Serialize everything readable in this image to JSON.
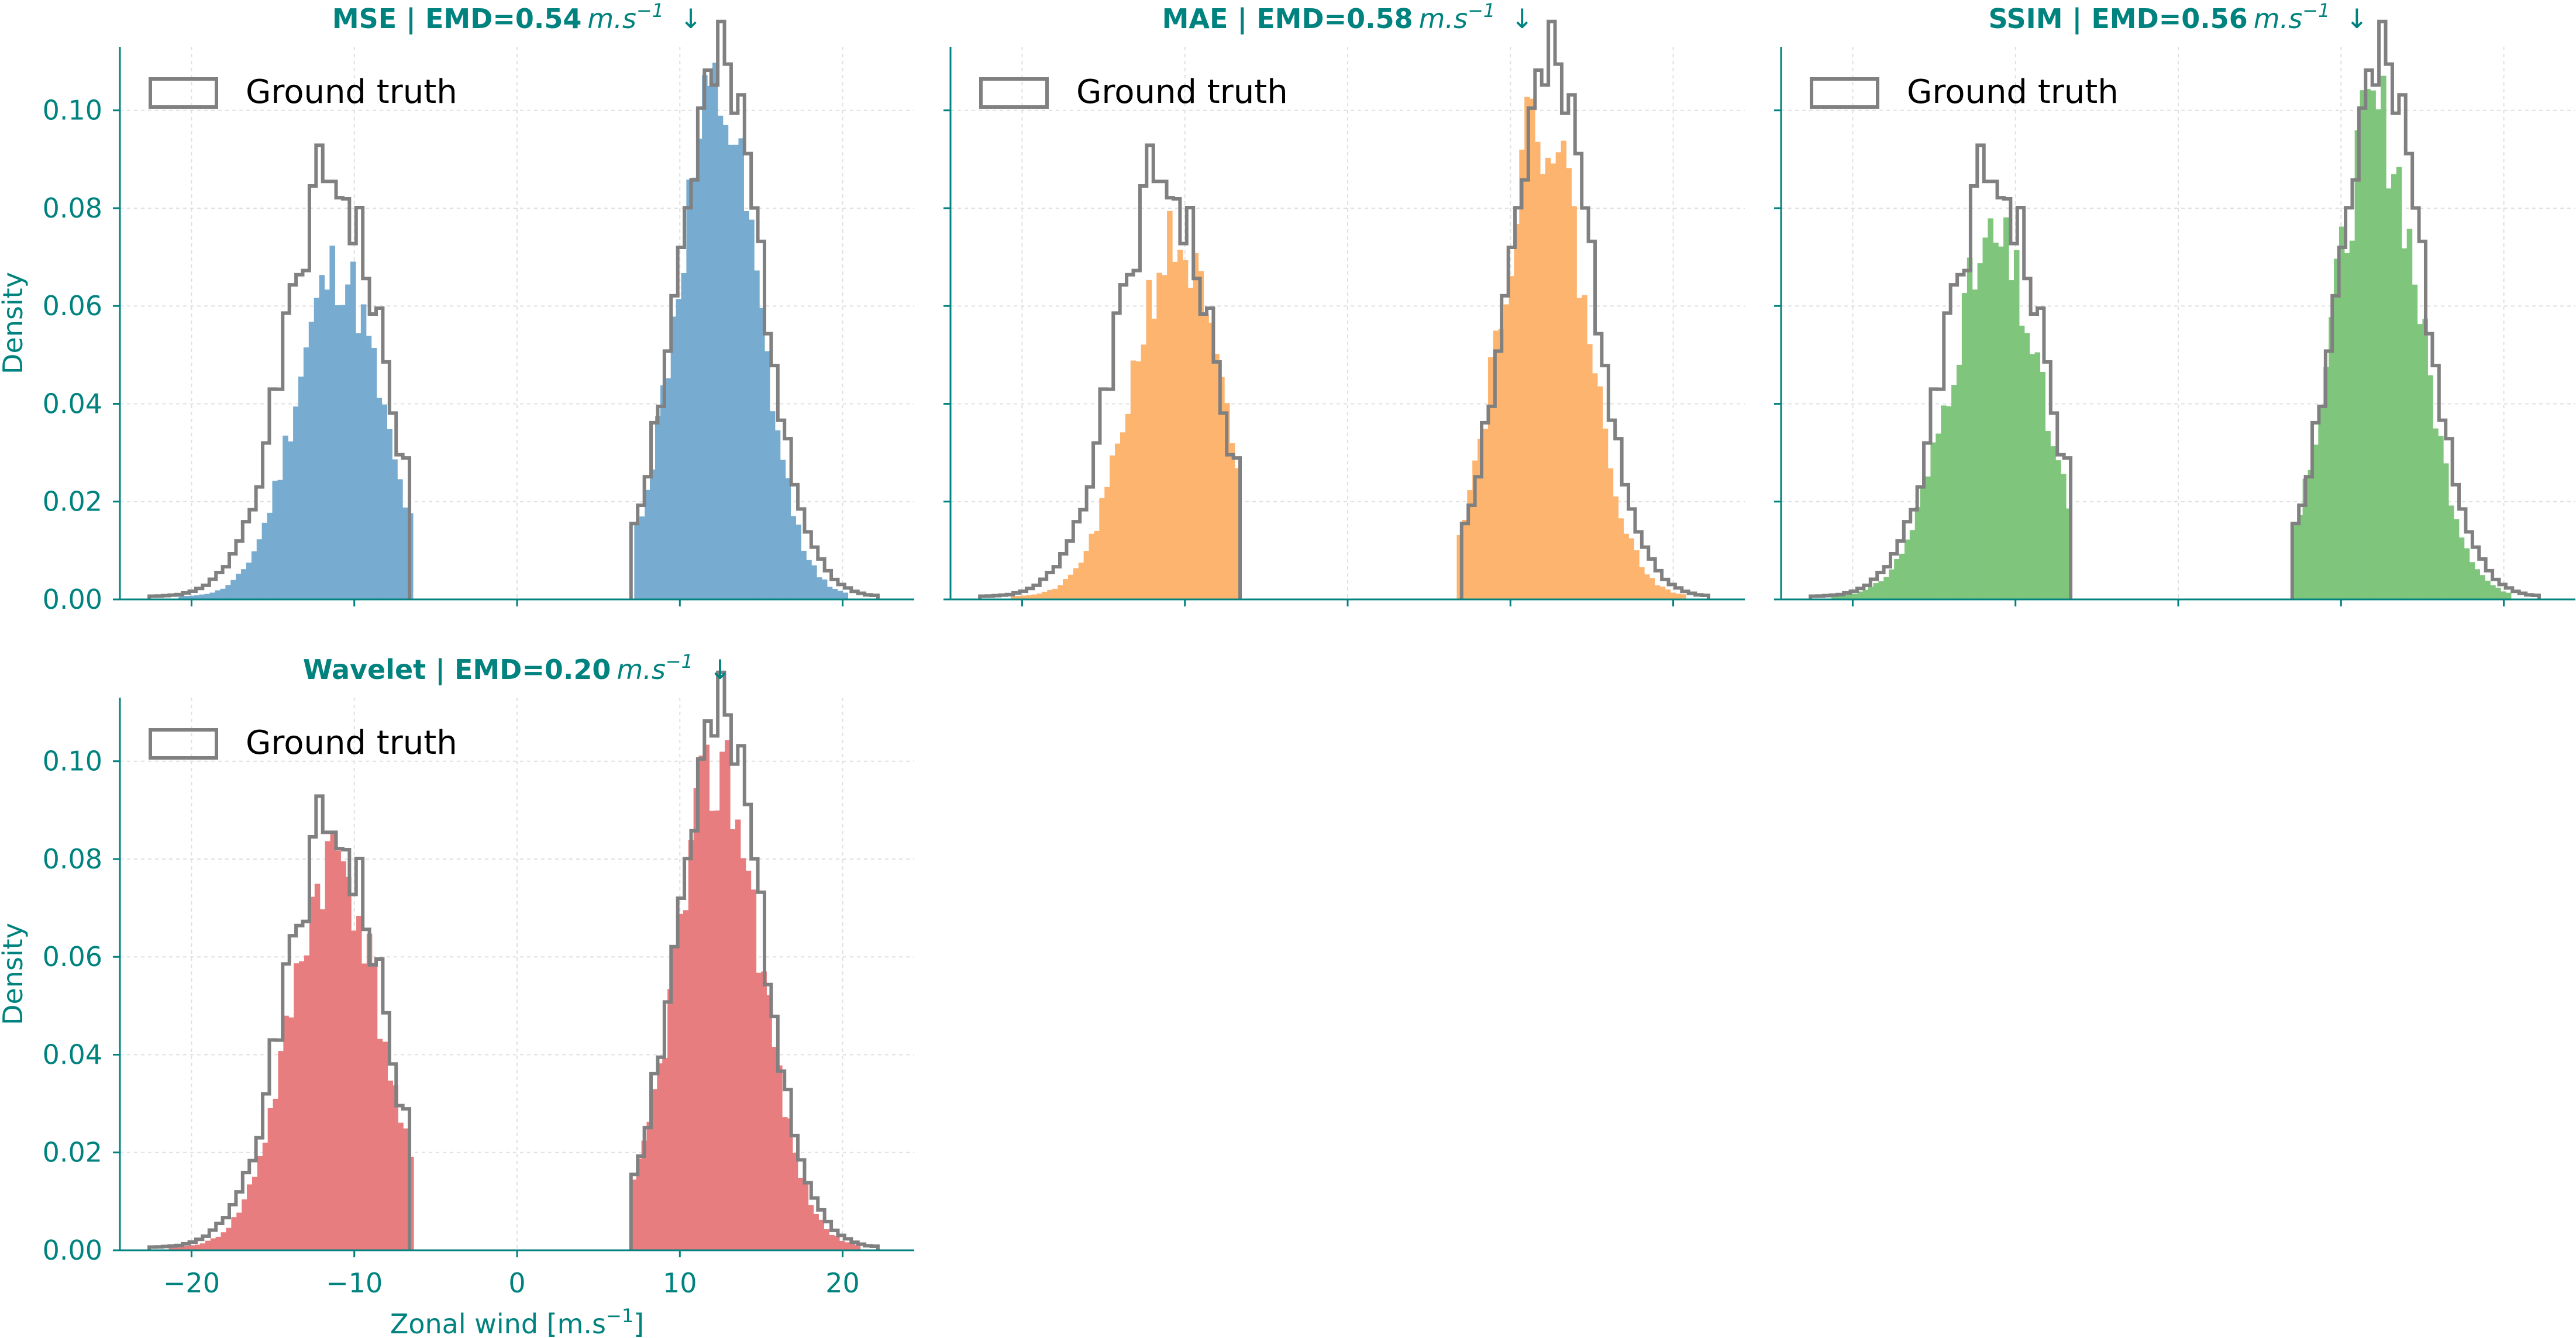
{
  "colors": {
    "axis": "#00827f",
    "ground_truth": "#808080",
    "grid": "#e0e0e0"
  },
  "figure": {
    "ylabel": "Density",
    "xlabel_main": "Zonal wind [m.s",
    "xlabel_sup": "−1",
    "xlabel_end": "]",
    "legend_label": "Ground truth",
    "emd_unit_main": "m.s",
    "emd_unit_sup": "−1",
    "arrow": "↓"
  },
  "chart_data": [
    {
      "type": "histogram",
      "title": "MSE | EMD=0.54",
      "method": "MSE",
      "emd": 0.54,
      "color": "#77abcf",
      "xlim": [
        -24.4,
        24.4
      ],
      "ylim": [
        0,
        0.113
      ],
      "xticks": [
        -20,
        -10,
        0,
        10,
        20
      ],
      "xticklabels": [
        "",
        "",
        "",
        "",
        ""
      ],
      "yticks": [
        0,
        0.02,
        0.04,
        0.06,
        0.08,
        0.1
      ],
      "yticklabels": [
        "0.00",
        "0.02",
        "0.04",
        "0.06",
        "0.08",
        "0.10"
      ],
      "legend": "top-left",
      "grid": true,
      "series": [
        {
          "role": "prediction",
          "mode": "left",
          "mu": -11.0,
          "sigma": 2.6,
          "peak": 0.067,
          "lo": -20.8,
          "hi": -6.5,
          "seed": 11
        },
        {
          "role": "prediction",
          "mode": "right",
          "mu": 12.3,
          "sigma": 2.5,
          "peak": 0.1,
          "lo": 7.2,
          "hi": 20.3,
          "seed": 12
        },
        {
          "role": "ground_truth",
          "mode": "left",
          "mu": -11.3,
          "sigma": 2.9,
          "peak": 0.086,
          "lo": -22.6,
          "hi": -6.8,
          "seed": 1
        },
        {
          "role": "ground_truth",
          "mode": "right",
          "mu": 12.5,
          "sigma": 2.7,
          "peak": 0.105,
          "lo": 7.0,
          "hi": 21.8,
          "seed": 2
        }
      ]
    },
    {
      "type": "histogram",
      "title": "MAE | EMD=0.58",
      "method": "MAE",
      "emd": 0.58,
      "color": "#fdb46f",
      "xlim": [
        -24.4,
        24.4
      ],
      "ylim": [
        0,
        0.113
      ],
      "xticks": [
        -20,
        -10,
        0,
        10,
        20
      ],
      "xticklabels": [
        "",
        "",
        "",
        "",
        ""
      ],
      "yticks": [
        0,
        0.02,
        0.04,
        0.06,
        0.08,
        0.1
      ],
      "yticklabels": [
        "",
        "",
        "",
        "",
        "",
        ""
      ],
      "legend": "top-left",
      "grid": true,
      "series": [
        {
          "role": "prediction",
          "mode": "left",
          "mu": -10.6,
          "sigma": 2.7,
          "peak": 0.072,
          "lo": -20.7,
          "hi": -6.8,
          "seed": 21
        },
        {
          "role": "prediction",
          "mode": "right",
          "mu": 12.0,
          "sigma": 2.6,
          "peak": 0.098,
          "lo": 6.7,
          "hi": 20.5,
          "seed": 22
        },
        {
          "role": "ground_truth",
          "mode": "left",
          "mu": -11.3,
          "sigma": 2.9,
          "peak": 0.086,
          "lo": -22.6,
          "hi": -6.8,
          "seed": 1
        },
        {
          "role": "ground_truth",
          "mode": "right",
          "mu": 12.5,
          "sigma": 2.7,
          "peak": 0.105,
          "lo": 7.0,
          "hi": 21.8,
          "seed": 2
        }
      ]
    },
    {
      "type": "histogram",
      "title": "SSIM | EMD=0.56",
      "method": "SSIM",
      "emd": 0.56,
      "color": "#7fc57c",
      "xlim": [
        -24.4,
        24.4
      ],
      "ylim": [
        0,
        0.113
      ],
      "xticks": [
        -20,
        -10,
        0,
        10,
        20
      ],
      "xticklabels": [
        "",
        "",
        "",
        "",
        ""
      ],
      "yticks": [
        0,
        0.02,
        0.04,
        0.06,
        0.08,
        0.1
      ],
      "yticklabels": [
        "",
        "",
        "",
        "",
        "",
        ""
      ],
      "legend": "top-left",
      "grid": true,
      "series": [
        {
          "role": "prediction",
          "mode": "left",
          "mu": -11.3,
          "sigma": 2.8,
          "peak": 0.072,
          "lo": -21.3,
          "hi": -6.7,
          "seed": 31
        },
        {
          "role": "prediction",
          "mode": "right",
          "mu": 12.2,
          "sigma": 2.6,
          "peak": 0.098,
          "lo": 7.0,
          "hi": 20.3,
          "seed": 32
        },
        {
          "role": "ground_truth",
          "mode": "left",
          "mu": -11.3,
          "sigma": 2.9,
          "peak": 0.086,
          "lo": -22.6,
          "hi": -6.8,
          "seed": 1
        },
        {
          "role": "ground_truth",
          "mode": "right",
          "mu": 12.5,
          "sigma": 2.7,
          "peak": 0.105,
          "lo": 7.0,
          "hi": 21.8,
          "seed": 2
        }
      ]
    },
    {
      "type": "histogram",
      "title": "Wavelet | EMD=0.20",
      "method": "Wavelet",
      "emd": 0.2,
      "color": "#e77d7f",
      "xlim": [
        -24.4,
        24.4
      ],
      "ylim": [
        0,
        0.113
      ],
      "xticks": [
        -20,
        -10,
        0,
        10,
        20
      ],
      "xticklabels": [
        "−20",
        "−10",
        "0",
        "10",
        "20"
      ],
      "yticks": [
        0,
        0.02,
        0.04,
        0.06,
        0.08,
        0.1
      ],
      "yticklabels": [
        "0.00",
        "0.02",
        "0.04",
        "0.06",
        "0.08",
        "0.10"
      ],
      "legend": "top-left",
      "grid": true,
      "series": [
        {
          "role": "prediction",
          "mode": "left",
          "mu": -11.2,
          "sigma": 2.7,
          "peak": 0.08,
          "lo": -21.4,
          "hi": -6.6,
          "seed": 41
        },
        {
          "role": "prediction",
          "mode": "right",
          "mu": 12.4,
          "sigma": 2.6,
          "peak": 0.098,
          "lo": 7.0,
          "hi": 21.0,
          "seed": 42
        },
        {
          "role": "ground_truth",
          "mode": "left",
          "mu": -11.3,
          "sigma": 2.9,
          "peak": 0.086,
          "lo": -22.6,
          "hi": -6.8,
          "seed": 1
        },
        {
          "role": "ground_truth",
          "mode": "right",
          "mu": 12.5,
          "sigma": 2.7,
          "peak": 0.105,
          "lo": 7.0,
          "hi": 21.8,
          "seed": 2
        }
      ]
    }
  ]
}
